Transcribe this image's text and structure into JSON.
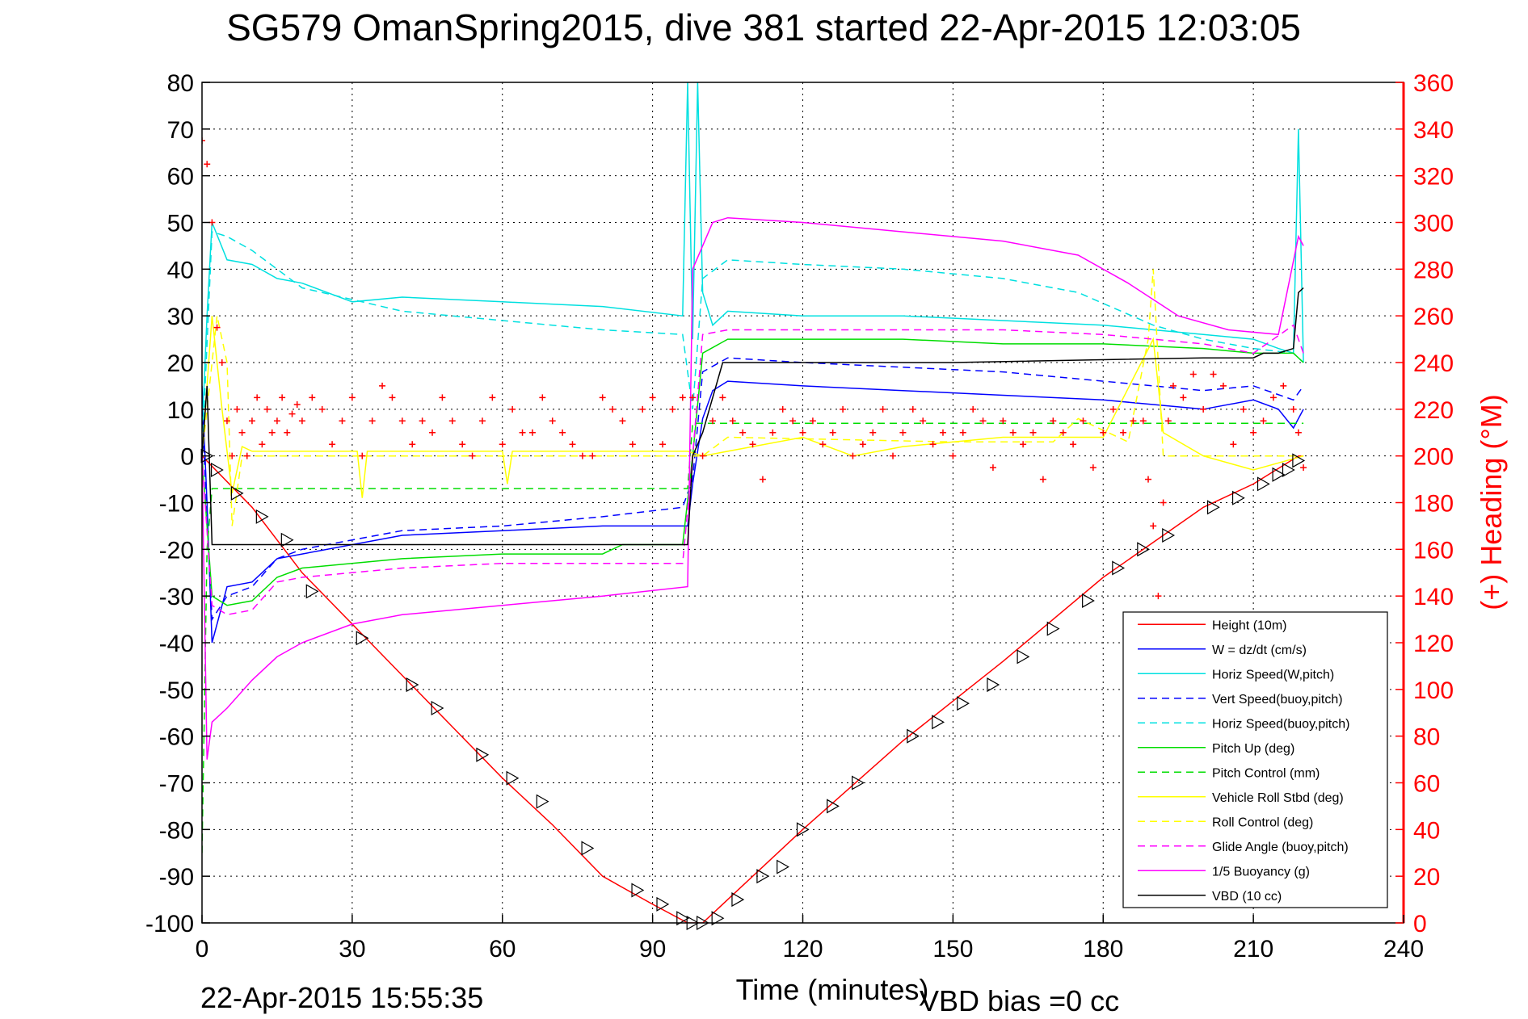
{
  "chart_data": {
    "type": "line",
    "title": "SG579 OmanSpring2015, dive 381 started 22-Apr-2015 12:03:05",
    "xlabel": "Time (minutes)",
    "ylabel": "",
    "y2label": "(+) Heading (°M)",
    "xlim": [
      0,
      240
    ],
    "ylim": [
      -100,
      80
    ],
    "y2lim": [
      0,
      360
    ],
    "xticks": [
      "0",
      "30",
      "60",
      "90",
      "120",
      "150",
      "180",
      "210",
      "240"
    ],
    "yticks": [
      "80",
      "70",
      "60",
      "50",
      "40",
      "30",
      "20",
      "10",
      "0",
      "-10",
      "-20",
      "-30",
      "-40",
      "-50",
      "-60",
      "-70",
      "-80",
      "-90",
      "-100"
    ],
    "y2ticks": [
      "360",
      "340",
      "320",
      "300",
      "280",
      "260",
      "240",
      "220",
      "200",
      "180",
      "160",
      "140",
      "120",
      "100",
      "80",
      "60",
      "40",
      "20",
      "0"
    ],
    "grid": true,
    "legend_position": "bottom-right",
    "timestamp": "22-Apr-2015 15:55:35",
    "vbd_note": "VBD bias =0 cc",
    "colors": {
      "red": "#ff0000",
      "blue": "#0000ff",
      "cyan": "#00e0e0",
      "green": "#00dd00",
      "yellow": "#ffff00",
      "magenta": "#ff00ff",
      "black": "#000000"
    },
    "series": [
      {
        "name": "Height (10m)",
        "color": "#ff0000",
        "dash": "solid",
        "x": [
          0,
          10,
          20,
          30,
          40,
          50,
          60,
          70,
          80,
          90,
          97,
          100,
          105,
          120,
          140,
          160,
          180,
          200,
          210,
          219,
          220
        ],
        "y": [
          0,
          -11,
          -25,
          -36,
          -47,
          -58,
          -69,
          -79,
          -90,
          -96,
          -100,
          -100,
          -95,
          -80,
          -61,
          -44,
          -26,
          -11,
          -6,
          0,
          0
        ]
      },
      {
        "name": "W = dz/dt (cm/s)",
        "color": "#0000ff",
        "dash": "solid",
        "x": [
          0,
          1,
          2,
          5,
          10,
          15,
          20,
          40,
          60,
          80,
          97,
          98,
          100,
          102,
          105,
          120,
          140,
          160,
          180,
          190,
          200,
          210,
          215,
          218,
          220
        ],
        "y": [
          15,
          -10,
          -40,
          -28,
          -27,
          -22,
          -21,
          -17,
          -16,
          -15,
          -15,
          -6,
          8,
          14,
          16,
          15,
          14,
          13,
          12,
          11,
          10,
          12,
          10,
          6,
          10
        ]
      },
      {
        "name": "Horiz Speed(W,pitch)",
        "color": "#00e0e0",
        "dash": "solid",
        "x": [
          0,
          1,
          2,
          5,
          10,
          15,
          20,
          30,
          40,
          60,
          80,
          96,
          97,
          98,
          99,
          100,
          102,
          105,
          120,
          140,
          160,
          180,
          200,
          210,
          215,
          218,
          219,
          220
        ],
        "y": [
          5,
          30,
          50,
          42,
          41,
          38,
          37,
          33,
          34,
          33,
          32,
          30,
          80,
          25,
          80,
          35,
          28,
          31,
          30,
          30,
          29,
          28,
          26,
          25,
          23,
          22,
          70,
          20
        ]
      },
      {
        "name": "Vert Speed(buoy,pitch)",
        "color": "#0000ff",
        "dash": "dashed",
        "x": [
          0,
          2,
          5,
          10,
          15,
          20,
          40,
          60,
          80,
          96,
          98,
          100,
          105,
          120,
          140,
          160,
          180,
          200,
          210,
          218,
          220
        ],
        "y": [
          10,
          -35,
          -30,
          -28,
          -22,
          -20,
          -16,
          -15,
          -13,
          -11,
          -5,
          18,
          21,
          20,
          19,
          18,
          16,
          14,
          15,
          12,
          15
        ]
      },
      {
        "name": "Horiz Speed(buoy,pitch)",
        "color": "#00e0e0",
        "dash": "dashed",
        "x": [
          0,
          2,
          5,
          10,
          20,
          40,
          60,
          80,
          96,
          98,
          100,
          105,
          120,
          140,
          160,
          175,
          190,
          200,
          210,
          218,
          220
        ],
        "y": [
          0,
          48,
          47,
          44,
          36,
          31,
          29,
          27,
          26,
          10,
          38,
          42,
          41,
          40,
          38,
          35,
          28,
          25,
          23,
          22,
          20
        ]
      },
      {
        "name": "Pitch Up (deg)",
        "color": "#00dd00",
        "dash": "solid",
        "x": [
          0,
          2,
          5,
          10,
          15,
          20,
          40,
          60,
          80,
          84,
          96,
          98,
          100,
          105,
          120,
          140,
          160,
          180,
          200,
          210,
          218,
          220
        ],
        "y": [
          0,
          -30,
          -32,
          -31,
          -26,
          -24,
          -22,
          -21,
          -21,
          -19,
          -19,
          0,
          22,
          25,
          25,
          25,
          24,
          24,
          23,
          22,
          22,
          20
        ]
      },
      {
        "name": "Pitch Control (mm)",
        "color": "#00dd00",
        "dash": "dashed",
        "x": [
          0,
          1,
          2,
          5,
          97,
          98,
          99,
          100,
          170,
          190,
          210,
          220
        ],
        "y": [
          -85,
          -20,
          -7,
          -7,
          -7,
          7,
          7,
          7,
          7,
          7,
          7,
          7
        ]
      },
      {
        "name": "Vehicle Roll Stbd (deg)",
        "color": "#ffff00",
        "dash": "solid",
        "x": [
          0,
          2,
          4,
          6,
          8,
          10,
          31,
          32,
          33,
          60,
          61,
          62,
          90,
          97,
          100,
          110,
          120,
          130,
          140,
          160,
          180,
          190,
          192,
          200,
          210,
          220
        ],
        "y": [
          0,
          30,
          10,
          -8,
          2,
          1,
          1,
          -9,
          1,
          1,
          -6,
          1,
          1,
          1,
          0,
          2,
          4,
          0,
          2,
          4,
          4,
          25,
          5,
          0,
          -3,
          0
        ]
      },
      {
        "name": "Roll Control (deg)",
        "color": "#ffff00",
        "dash": "dashed",
        "x": [
          0,
          3,
          5,
          6,
          8,
          100,
          105,
          150,
          170,
          175,
          185,
          189,
          190,
          191,
          192,
          195,
          200,
          210,
          220
        ],
        "y": [
          0,
          30,
          20,
          -15,
          0,
          0,
          4,
          3,
          3,
          8,
          3,
          25,
          40,
          20,
          0,
          0,
          0,
          0,
          0
        ]
      },
      {
        "name": "Glide Angle (buoy,pitch)",
        "color": "#ff00ff",
        "dash": "dashed",
        "x": [
          0,
          2,
          5,
          10,
          15,
          20,
          40,
          60,
          80,
          96,
          98,
          100,
          105,
          120,
          140,
          160,
          180,
          200,
          210,
          218,
          220
        ],
        "y": [
          0,
          -32,
          -34,
          -33,
          -27,
          -26,
          -24,
          -23,
          -23,
          -23,
          0,
          26,
          27,
          27,
          27,
          27,
          26,
          24,
          22,
          28,
          22
        ]
      },
      {
        "name": "1/5 Buoyancy (g)",
        "color": "#ff00ff",
        "dash": "solid",
        "x": [
          0,
          1,
          2,
          5,
          10,
          15,
          20,
          30,
          40,
          60,
          80,
          97,
          98,
          100,
          102,
          105,
          120,
          140,
          160,
          175,
          185,
          195,
          205,
          215,
          219,
          220
        ],
        "y": [
          0,
          -65,
          -57,
          -54,
          -48,
          -43,
          -40,
          -36,
          -34,
          -32,
          -30,
          -28,
          40,
          45,
          50,
          51,
          50,
          48,
          46,
          43,
          37,
          30,
          27,
          26,
          47,
          45
        ]
      },
      {
        "name": "VBD (10 cc)",
        "color": "#000000",
        "dash": "solid",
        "x": [
          0,
          1,
          2,
          3,
          97,
          98,
          100,
          104,
          105,
          150,
          200,
          210,
          212,
          215,
          218,
          219,
          220
        ],
        "y": [
          0,
          15,
          -19,
          -19,
          -19,
          0,
          5,
          20,
          20,
          20,
          21,
          21,
          22,
          22,
          23,
          35,
          36
        ]
      }
    ],
    "heading": {
      "label": "(+) Heading (°M)",
      "color": "#ff0000",
      "x": [
        0,
        1,
        2,
        3,
        4,
        5,
        6,
        7,
        8,
        9,
        10,
        11,
        12,
        13,
        14,
        15,
        16,
        17,
        18,
        19,
        20,
        22,
        24,
        26,
        28,
        30,
        32,
        34,
        36,
        38,
        40,
        42,
        44,
        46,
        48,
        50,
        52,
        54,
        56,
        58,
        60,
        62,
        64,
        66,
        68,
        70,
        72,
        74,
        76,
        78,
        80,
        82,
        84,
        86,
        88,
        90,
        92,
        94,
        96,
        98,
        100,
        102,
        104,
        106,
        108,
        110,
        112,
        114,
        116,
        118,
        120,
        122,
        124,
        126,
        128,
        130,
        132,
        134,
        136,
        138,
        140,
        142,
        144,
        146,
        148,
        150,
        152,
        154,
        156,
        158,
        160,
        162,
        164,
        166,
        168,
        170,
        172,
        174,
        176,
        178,
        180,
        182,
        184,
        186,
        188,
        189,
        190,
        191,
        192,
        193,
        194,
        196,
        198,
        200,
        202,
        204,
        206,
        208,
        210,
        212,
        214,
        216,
        218,
        219,
        220
      ],
      "y": [
        335,
        325,
        300,
        255,
        240,
        215,
        200,
        220,
        210,
        200,
        215,
        225,
        205,
        220,
        210,
        215,
        225,
        210,
        218,
        222,
        215,
        225,
        220,
        205,
        215,
        225,
        200,
        215,
        230,
        225,
        215,
        205,
        215,
        210,
        225,
        215,
        205,
        200,
        215,
        225,
        205,
        220,
        210,
        210,
        225,
        215,
        210,
        205,
        200,
        200,
        225,
        220,
        215,
        205,
        220,
        225,
        205,
        220,
        225,
        225,
        200,
        215,
        225,
        215,
        210,
        205,
        190,
        210,
        220,
        215,
        210,
        215,
        205,
        210,
        220,
        200,
        205,
        210,
        220,
        200,
        210,
        220,
        215,
        205,
        210,
        200,
        210,
        220,
        215,
        195,
        215,
        210,
        205,
        210,
        190,
        215,
        210,
        205,
        215,
        195,
        210,
        220,
        210,
        215,
        215,
        190,
        170,
        140,
        180,
        215,
        230,
        225,
        235,
        220,
        235,
        230,
        205,
        220,
        210,
        215,
        225,
        230,
        220,
        210,
        195
      ]
    },
    "markers": {
      "symbol": "triangle",
      "x": [
        1,
        3,
        7,
        12,
        17,
        22,
        32,
        42,
        47,
        56,
        62,
        68,
        77,
        87,
        92,
        96,
        98,
        100,
        103,
        107,
        112,
        116,
        120,
        126,
        131,
        142,
        147,
        152,
        158,
        164,
        170,
        177,
        183,
        188,
        193,
        202,
        207,
        212,
        215,
        217,
        219
      ],
      "y": [
        0,
        -3,
        -8,
        -13,
        -18,
        -29,
        -39,
        -49,
        -54,
        -64,
        -69,
        -74,
        -84,
        -93,
        -96,
        -99,
        -100,
        -100,
        -99,
        -95,
        -90,
        -88,
        -80,
        -75,
        -70,
        -60,
        -57,
        -53,
        -49,
        -43,
        -37,
        -31,
        -24,
        -20,
        -17,
        -11,
        -9,
        -6,
        -4,
        -3,
        -1
      ]
    }
  },
  "legend_labels": [
    "Height (10m)",
    "W = dz/dt (cm/s)",
    "Horiz Speed(W,pitch)",
    "Vert Speed(buoy,pitch)",
    "Horiz Speed(buoy,pitch)",
    "Pitch Up (deg)",
    "Pitch Control (mm)",
    "Vehicle Roll Stbd (deg)",
    "Roll Control (deg)",
    "Glide Angle (buoy,pitch)",
    "1/5 Buoyancy (g)",
    "VBD (10 cc)"
  ]
}
